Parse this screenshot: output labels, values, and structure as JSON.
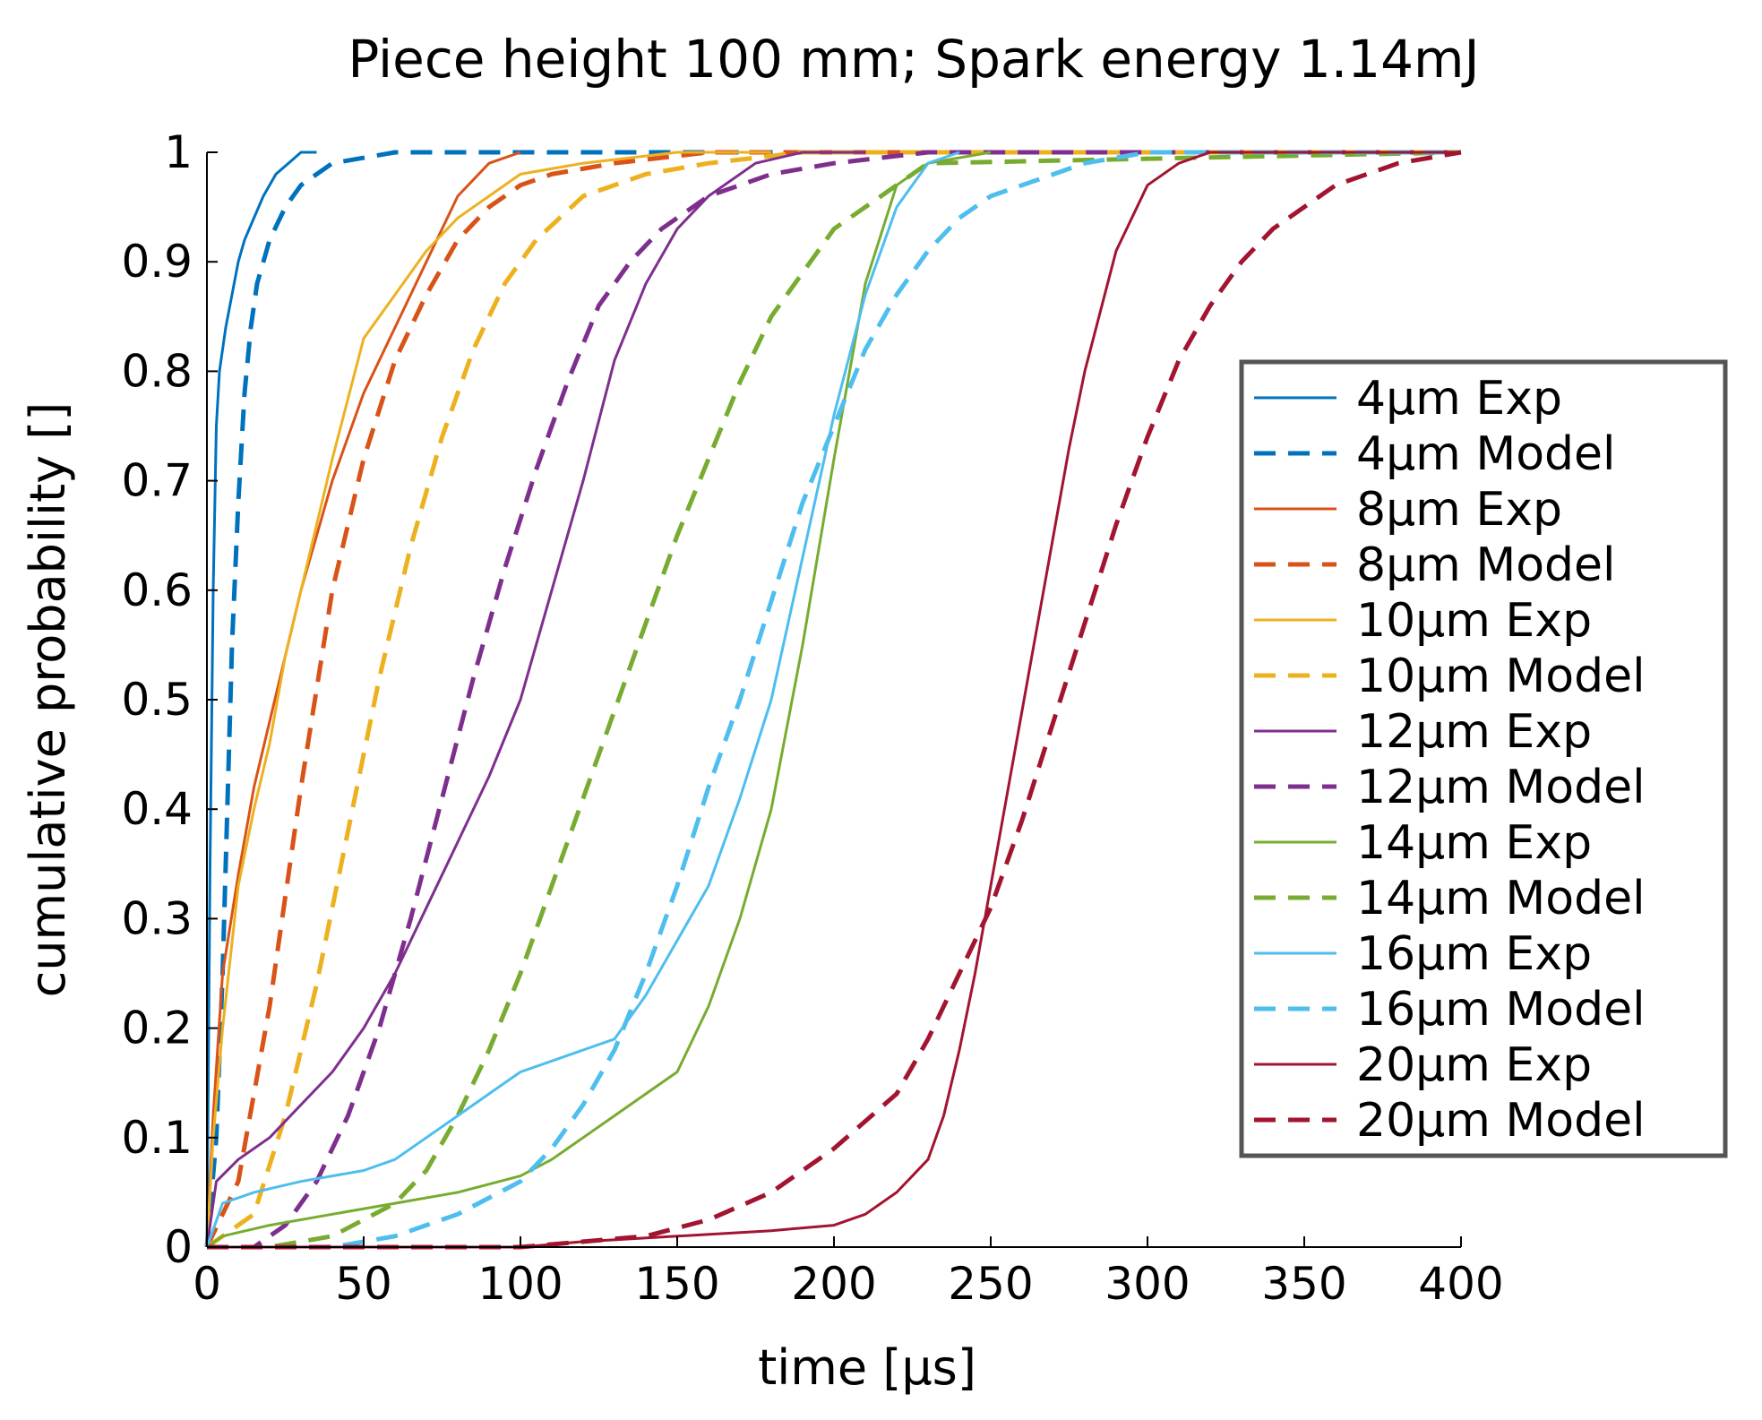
{
  "chart_data": {
    "type": "line",
    "title": "Piece height 100 mm; Spark energy 1.14mJ",
    "xlabel": "time [µs]",
    "ylabel": "cumulative probability []",
    "xlim": [
      0,
      400
    ],
    "ylim": [
      0,
      1
    ],
    "xticks": [
      0,
      50,
      100,
      150,
      200,
      250,
      300,
      350,
      400
    ],
    "yticks": [
      0,
      0.1,
      0.2,
      0.3,
      0.4,
      0.5,
      0.6,
      0.7,
      0.8,
      0.9,
      1
    ],
    "xtick_labels": [
      "0",
      "50",
      "100",
      "150",
      "200",
      "250",
      "300",
      "350",
      "400"
    ],
    "ytick_labels": [
      "0",
      "0.1",
      "0.2",
      "0.3",
      "0.4",
      "0.5",
      "0.6",
      "0.7",
      "0.8",
      "0.9",
      "1"
    ],
    "grid": false,
    "legend_position": "right",
    "series": [
      {
        "name": "4µm Exp",
        "color": "#0072BD",
        "style": "solid",
        "x": [
          0,
          1,
          2,
          3,
          4,
          6,
          8,
          10,
          12,
          15,
          18,
          22,
          26,
          30,
          35
        ],
        "y": [
          0,
          0.35,
          0.6,
          0.75,
          0.8,
          0.84,
          0.87,
          0.9,
          0.92,
          0.94,
          0.96,
          0.98,
          0.99,
          1.0,
          1.0
        ]
      },
      {
        "name": "4µm Model",
        "color": "#0072BD",
        "style": "dashed",
        "x": [
          0,
          3,
          5,
          7,
          8,
          10,
          12,
          14,
          16,
          20,
          25,
          30,
          40,
          60,
          100,
          400
        ],
        "y": [
          0,
          0.1,
          0.25,
          0.45,
          0.55,
          0.68,
          0.78,
          0.84,
          0.88,
          0.92,
          0.95,
          0.97,
          0.99,
          1.0,
          1.0,
          1.0
        ]
      },
      {
        "name": "8µm Exp",
        "color": "#D95319",
        "style": "solid",
        "x": [
          0,
          2,
          5,
          10,
          15,
          20,
          25,
          30,
          40,
          50,
          60,
          70,
          80,
          90,
          100
        ],
        "y": [
          0,
          0.12,
          0.25,
          0.34,
          0.42,
          0.48,
          0.54,
          0.6,
          0.7,
          0.78,
          0.84,
          0.9,
          0.96,
          0.99,
          1.0
        ]
      },
      {
        "name": "8µm Model",
        "color": "#D95319",
        "style": "dashed",
        "x": [
          0,
          10,
          20,
          30,
          40,
          50,
          60,
          70,
          80,
          90,
          100,
          110,
          130,
          160,
          400
        ],
        "y": [
          0,
          0.06,
          0.22,
          0.42,
          0.6,
          0.72,
          0.81,
          0.87,
          0.92,
          0.95,
          0.97,
          0.98,
          0.99,
          1.0,
          1.0
        ]
      },
      {
        "name": "10µm Exp",
        "color": "#EDB120",
        "style": "solid",
        "x": [
          0,
          2,
          5,
          10,
          15,
          20,
          25,
          30,
          40,
          50,
          60,
          70,
          80,
          90,
          100,
          120,
          150,
          180
        ],
        "y": [
          0,
          0.1,
          0.2,
          0.33,
          0.4,
          0.46,
          0.54,
          0.6,
          0.72,
          0.83,
          0.87,
          0.91,
          0.94,
          0.96,
          0.98,
          0.99,
          1.0,
          1.0
        ]
      },
      {
        "name": "10µm Model",
        "color": "#EDB120",
        "style": "dashed",
        "x": [
          0,
          15,
          25,
          35,
          45,
          55,
          65,
          75,
          85,
          95,
          105,
          120,
          140,
          160,
          190,
          400
        ],
        "y": [
          0,
          0.03,
          0.12,
          0.24,
          0.38,
          0.52,
          0.64,
          0.74,
          0.82,
          0.88,
          0.92,
          0.96,
          0.98,
          0.99,
          1.0,
          1.0
        ]
      },
      {
        "name": "12µm Exp",
        "color": "#7E2F8E",
        "style": "solid",
        "x": [
          0,
          3,
          10,
          20,
          30,
          40,
          50,
          60,
          70,
          80,
          90,
          100,
          110,
          120,
          130,
          140,
          150,
          160,
          175,
          190,
          210
        ],
        "y": [
          0,
          0.06,
          0.08,
          0.1,
          0.13,
          0.16,
          0.2,
          0.25,
          0.31,
          0.37,
          0.43,
          0.5,
          0.6,
          0.7,
          0.81,
          0.88,
          0.93,
          0.96,
          0.99,
          1.0,
          1.0
        ]
      },
      {
        "name": "12µm Model",
        "color": "#7E2F8E",
        "style": "dashed",
        "x": [
          0,
          15,
          25,
          35,
          45,
          55,
          65,
          75,
          85,
          95,
          105,
          115,
          125,
          135,
          145,
          160,
          180,
          200,
          230,
          400
        ],
        "y": [
          0,
          0.0,
          0.02,
          0.06,
          0.12,
          0.2,
          0.3,
          0.41,
          0.52,
          0.62,
          0.71,
          0.79,
          0.86,
          0.9,
          0.93,
          0.96,
          0.98,
          0.99,
          1.0,
          1.0
        ]
      },
      {
        "name": "14µm Exp",
        "color": "#77AC30",
        "style": "solid",
        "x": [
          0,
          5,
          20,
          40,
          60,
          80,
          100,
          110,
          120,
          130,
          140,
          150,
          160,
          170,
          180,
          190,
          200,
          210,
          220,
          230,
          250
        ],
        "y": [
          0,
          0.01,
          0.02,
          0.03,
          0.04,
          0.05,
          0.065,
          0.08,
          0.1,
          0.12,
          0.14,
          0.16,
          0.22,
          0.3,
          0.4,
          0.55,
          0.72,
          0.88,
          0.97,
          0.99,
          1.0
        ]
      },
      {
        "name": "14µm Model",
        "color": "#77AC30",
        "style": "dashed",
        "x": [
          0,
          20,
          40,
          60,
          70,
          80,
          90,
          100,
          110,
          120,
          130,
          140,
          150,
          160,
          170,
          180,
          190,
          200,
          215,
          230,
          400
        ],
        "y": [
          0,
          0.0,
          0.01,
          0.04,
          0.07,
          0.12,
          0.18,
          0.25,
          0.33,
          0.41,
          0.49,
          0.57,
          0.65,
          0.72,
          0.79,
          0.85,
          0.89,
          0.93,
          0.96,
          0.99,
          1.0
        ]
      },
      {
        "name": "16µm Exp",
        "color": "#4DBEEE",
        "style": "solid",
        "x": [
          0,
          5,
          15,
          30,
          50,
          60,
          70,
          80,
          90,
          100,
          110,
          120,
          130,
          140,
          150,
          160,
          170,
          180,
          190,
          200,
          210,
          220,
          230,
          240
        ],
        "y": [
          0,
          0.04,
          0.05,
          0.06,
          0.07,
          0.08,
          0.1,
          0.12,
          0.14,
          0.16,
          0.17,
          0.18,
          0.19,
          0.23,
          0.28,
          0.33,
          0.41,
          0.5,
          0.63,
          0.76,
          0.87,
          0.95,
          0.99,
          1.0
        ]
      },
      {
        "name": "16µm Model",
        "color": "#4DBEEE",
        "style": "dashed",
        "x": [
          0,
          40,
          60,
          80,
          100,
          110,
          120,
          130,
          140,
          150,
          160,
          170,
          180,
          190,
          200,
          210,
          220,
          230,
          240,
          250,
          260,
          280,
          300,
          320,
          350,
          400
        ],
        "y": [
          0,
          0.0,
          0.01,
          0.03,
          0.06,
          0.09,
          0.13,
          0.18,
          0.25,
          0.33,
          0.42,
          0.5,
          0.59,
          0.68,
          0.75,
          0.82,
          0.87,
          0.91,
          0.94,
          0.96,
          0.97,
          0.99,
          1.0,
          1.0,
          1.0,
          1.0
        ]
      },
      {
        "name": "20µm Exp",
        "color": "#A2142F",
        "style": "solid",
        "x": [
          0,
          100,
          120,
          150,
          180,
          200,
          210,
          220,
          230,
          235,
          240,
          245,
          250,
          255,
          260,
          265,
          270,
          275,
          280,
          290,
          300,
          310,
          320,
          400
        ],
        "y": [
          0,
          0.0,
          0.005,
          0.01,
          0.015,
          0.02,
          0.03,
          0.05,
          0.08,
          0.12,
          0.18,
          0.25,
          0.33,
          0.41,
          0.49,
          0.57,
          0.65,
          0.73,
          0.8,
          0.91,
          0.97,
          0.99,
          1.0,
          1.0
        ]
      },
      {
        "name": "20µm Model",
        "color": "#A2142F",
        "style": "dashed",
        "x": [
          0,
          100,
          120,
          140,
          160,
          180,
          200,
          220,
          230,
          240,
          250,
          260,
          270,
          280,
          290,
          300,
          310,
          320,
          330,
          340,
          350,
          360,
          370,
          380,
          390,
          400
        ],
        "y": [
          0,
          0.0,
          0.005,
          0.01,
          0.025,
          0.05,
          0.09,
          0.14,
          0.19,
          0.25,
          0.31,
          0.39,
          0.48,
          0.57,
          0.66,
          0.74,
          0.81,
          0.86,
          0.9,
          0.93,
          0.95,
          0.97,
          0.98,
          0.99,
          0.995,
          1.0
        ]
      }
    ]
  }
}
